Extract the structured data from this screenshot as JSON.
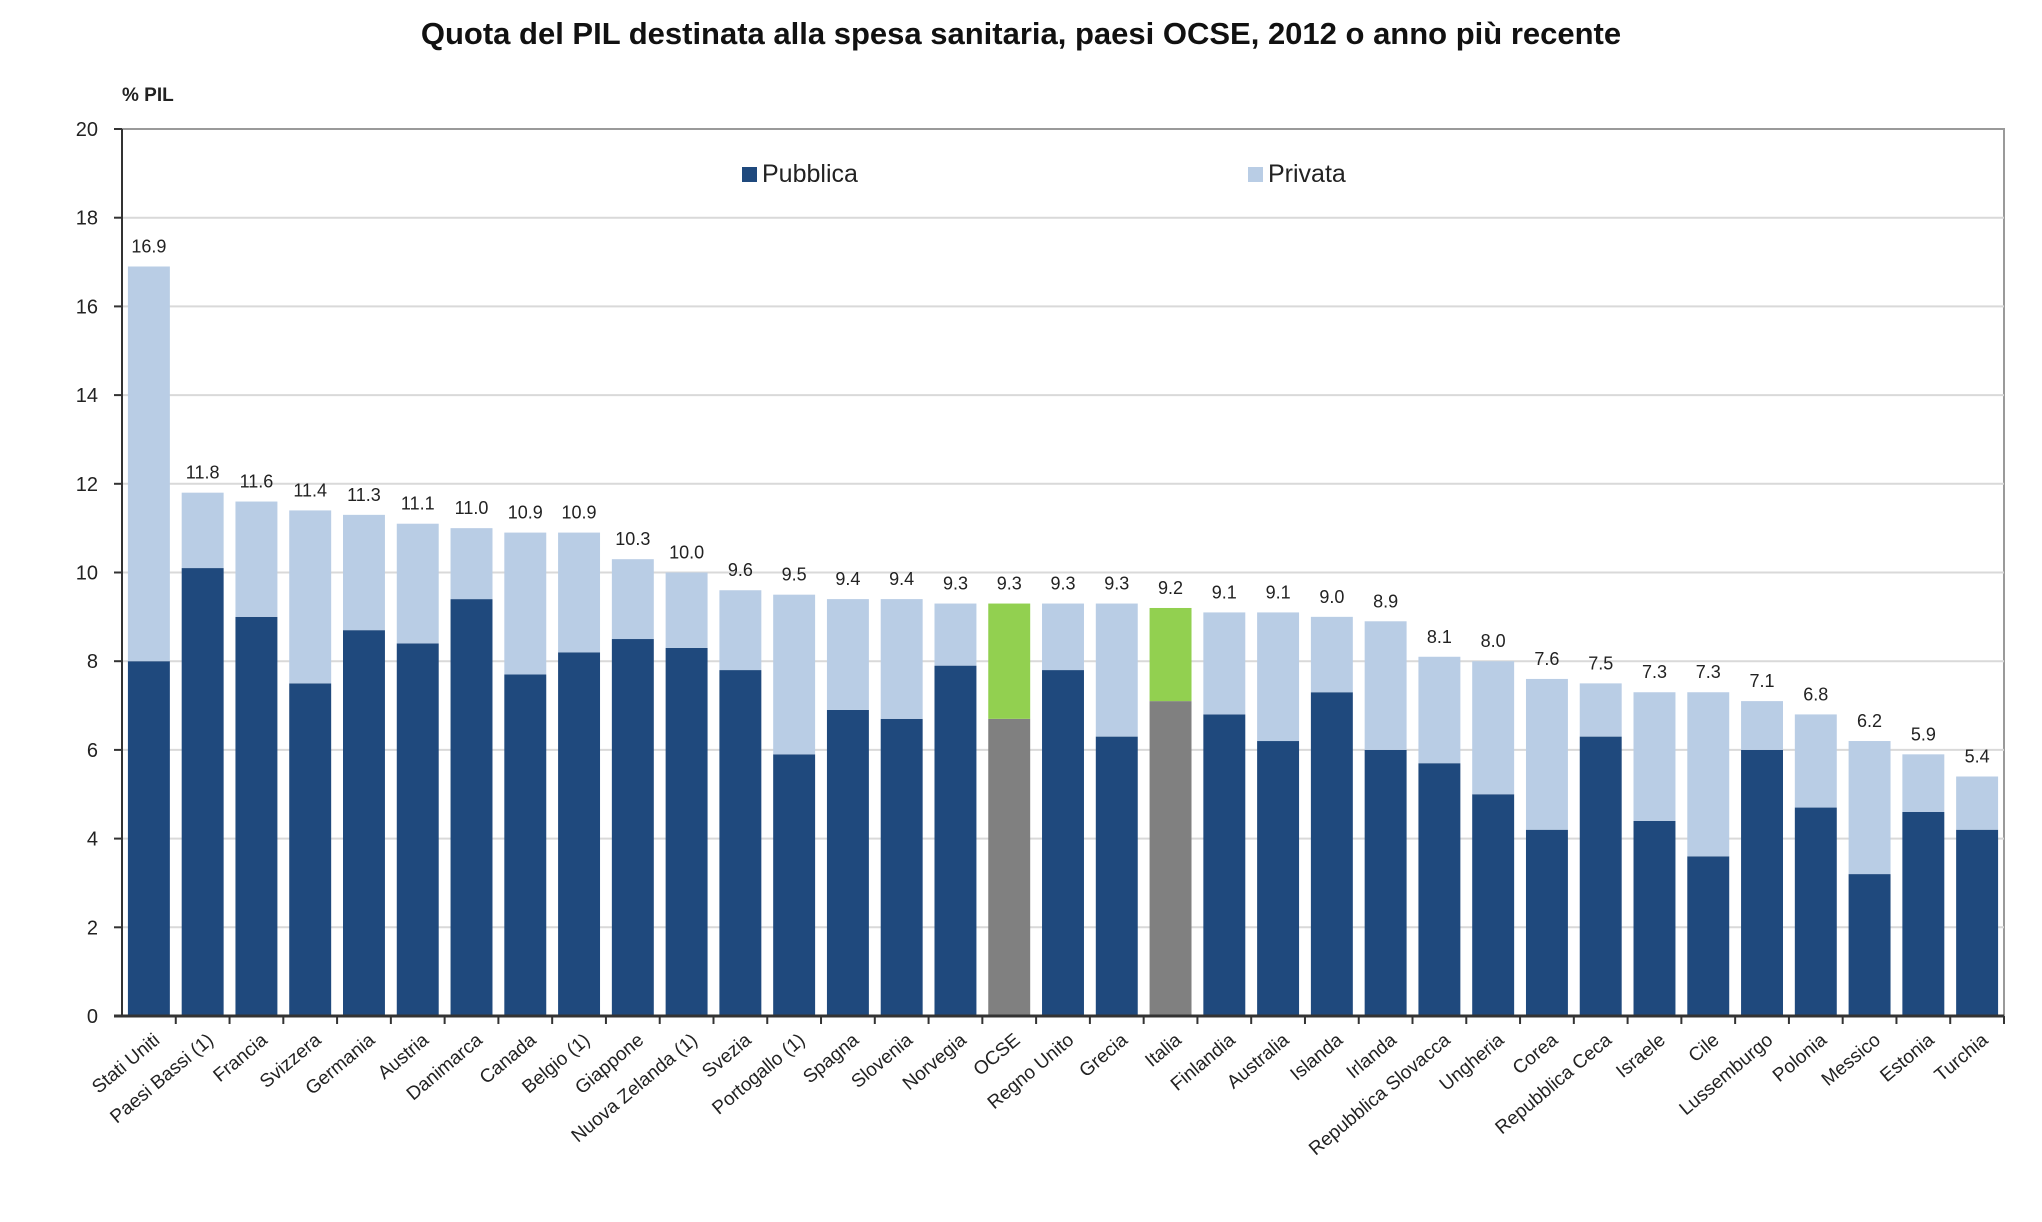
{
  "chart_data": {
    "type": "bar",
    "stacked": true,
    "title": "Quota del PIL destinata alla spesa sanitaria, paesi OCSE, 2012 o anno più recente",
    "ylabel": "% PIL",
    "xlabel": "",
    "ylim": [
      0,
      20
    ],
    "yticks": [
      "0",
      "2",
      "4",
      "6",
      "8",
      "10",
      "12",
      "14",
      "16",
      "18",
      "20"
    ],
    "grid": true,
    "legend_position": "top",
    "categories": [
      "Stati Uniti",
      "Paesi Bassi (1)",
      "Francia",
      "Svizzera",
      "Germania",
      "Austria",
      "Danimarca",
      "Canada",
      "Belgio (1)",
      "Giappone",
      "Nuova Zelanda (1)",
      "Svezia",
      "Portogallo (1)",
      "Spagna",
      "Slovenia",
      "Norvegia",
      "OCSE",
      "Regno Unito",
      "Grecia",
      "Italia",
      "Finlandia",
      "Australia",
      "Islanda",
      "Irlanda",
      "Repubblica Slovacca",
      "Ungheria",
      "Corea",
      "Repubblica Ceca",
      "Israele",
      "Cile",
      "Lussemburgo",
      "Polonia",
      "Messico",
      "Estonia",
      "Turchia"
    ],
    "totals": [
      16.9,
      11.8,
      11.6,
      11.4,
      11.3,
      11.1,
      11.0,
      10.9,
      10.9,
      10.3,
      10.0,
      9.6,
      9.5,
      9.4,
      9.4,
      9.3,
      9.3,
      9.3,
      9.3,
      9.2,
      9.1,
      9.1,
      9.0,
      8.9,
      8.1,
      8.0,
      7.6,
      7.5,
      7.3,
      7.3,
      7.1,
      6.8,
      6.2,
      5.9,
      5.4
    ],
    "total_labels": [
      "16.9",
      "11.8",
      "11.6",
      "11.4",
      "11.3",
      "11.1",
      "11.0",
      "10.9",
      "10.9",
      "10.3",
      "10.0",
      "9.6",
      "9.5",
      "9.4",
      "9.4",
      "9.3",
      "9.3",
      "9.3",
      "9.3",
      "9.2",
      "9.1",
      "9.1",
      "9.0",
      "8.9",
      "8.1",
      "8.0",
      "7.6",
      "7.5",
      "7.3",
      "7.3",
      "7.1",
      "6.8",
      "6.2",
      "5.9",
      "5.4"
    ],
    "series": [
      {
        "name": "Pubblica",
        "values": [
          8.0,
          10.1,
          9.0,
          7.5,
          8.7,
          8.4,
          9.4,
          7.7,
          8.2,
          8.5,
          8.3,
          7.8,
          5.9,
          6.9,
          6.7,
          7.9,
          6.7,
          7.8,
          6.3,
          7.1,
          6.8,
          6.2,
          7.3,
          6.0,
          5.7,
          5.0,
          4.2,
          6.3,
          4.4,
          3.6,
          6.0,
          4.7,
          3.2,
          4.6,
          4.2
        ]
      },
      {
        "name": "Privata",
        "values": [
          8.9,
          1.7,
          2.6,
          3.9,
          2.6,
          2.7,
          1.6,
          3.2,
          2.7,
          1.8,
          1.7,
          1.8,
          3.6,
          2.5,
          2.7,
          1.4,
          2.6,
          1.5,
          3.0,
          2.1,
          2.3,
          2.9,
          1.7,
          2.9,
          2.4,
          3.0,
          3.4,
          1.2,
          2.9,
          3.7,
          1.1,
          2.1,
          3.0,
          1.3,
          1.2
        ]
      }
    ],
    "highlight": {
      "categories": [
        "OCSE",
        "Italia"
      ],
      "public_color": "#808080",
      "private_color": "#92d050"
    },
    "colors": {
      "public": "#1f497d",
      "private": "#b9cde5",
      "grid": "#d9d9d9",
      "axis": "#333333"
    }
  }
}
